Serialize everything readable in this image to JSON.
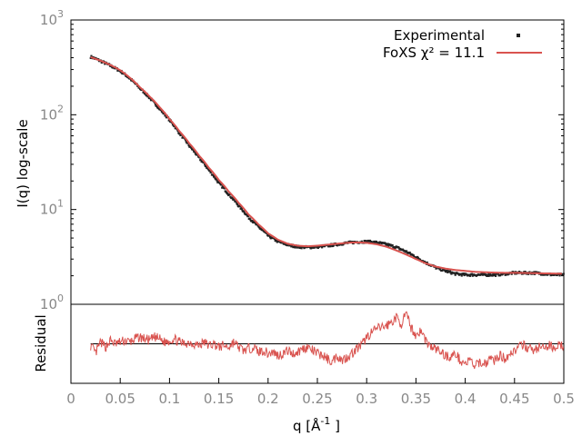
{
  "chart_data": [
    {
      "type": "scatter",
      "panel": "top",
      "ylabel": "I(q) log-scale",
      "yscale": "log",
      "ylim": [
        1,
        1000
      ],
      "xlim": [
        0,
        0.5
      ],
      "y_ticks": [
        {
          "base": "10",
          "exp": "0",
          "value": 1
        },
        {
          "base": "10",
          "exp": "1",
          "value": 10
        },
        {
          "base": "10",
          "exp": "2",
          "value": 100
        },
        {
          "base": "10",
          "exp": "3",
          "value": 1000
        }
      ],
      "series": [
        {
          "name": "Experimental",
          "color": "#222222",
          "style": "points",
          "x": [
            0.02,
            0.03,
            0.04,
            0.05,
            0.06,
            0.07,
            0.08,
            0.09,
            0.1,
            0.11,
            0.12,
            0.13,
            0.14,
            0.15,
            0.16,
            0.17,
            0.18,
            0.19,
            0.2,
            0.21,
            0.22,
            0.23,
            0.24,
            0.25,
            0.26,
            0.27,
            0.28,
            0.29,
            0.3,
            0.31,
            0.32,
            0.33,
            0.34,
            0.35,
            0.36,
            0.37,
            0.38,
            0.39,
            0.4,
            0.41,
            0.42,
            0.43,
            0.44,
            0.45,
            0.46,
            0.47,
            0.48,
            0.49,
            0.5
          ],
          "y": [
            410,
            370,
            330,
            290,
            240,
            190,
            150,
            115,
            88,
            64,
            47,
            35,
            26,
            19,
            14.5,
            11,
            8.3,
            6.6,
            5.3,
            4.6,
            4.25,
            4.05,
            4.0,
            4.05,
            4.15,
            4.3,
            4.45,
            4.55,
            4.6,
            4.5,
            4.3,
            4.0,
            3.6,
            3.15,
            2.75,
            2.45,
            2.25,
            2.1,
            2.05,
            2.05,
            2.05,
            2.05,
            2.1,
            2.15,
            2.15,
            2.15,
            2.1,
            2.05,
            2.05
          ]
        },
        {
          "name": "FoXS χ² = 11.1",
          "color": "#d9534f",
          "style": "line",
          "x": [
            0.02,
            0.03,
            0.04,
            0.05,
            0.06,
            0.07,
            0.08,
            0.09,
            0.1,
            0.11,
            0.12,
            0.13,
            0.14,
            0.15,
            0.16,
            0.17,
            0.18,
            0.19,
            0.2,
            0.21,
            0.22,
            0.23,
            0.24,
            0.25,
            0.26,
            0.27,
            0.28,
            0.29,
            0.3,
            0.31,
            0.32,
            0.33,
            0.34,
            0.35,
            0.36,
            0.37,
            0.38,
            0.39,
            0.4,
            0.41,
            0.42,
            0.43,
            0.44,
            0.45,
            0.46,
            0.47,
            0.48,
            0.49,
            0.5
          ],
          "y": [
            405,
            372,
            335,
            295,
            245,
            195,
            155,
            120,
            90,
            67,
            50,
            37,
            27.5,
            20.5,
            15.5,
            11.8,
            8.9,
            7.0,
            5.6,
            4.8,
            4.35,
            4.15,
            4.1,
            4.15,
            4.25,
            4.35,
            4.45,
            4.5,
            4.45,
            4.3,
            4.05,
            3.7,
            3.35,
            3.0,
            2.7,
            2.5,
            2.38,
            2.3,
            2.25,
            2.2,
            2.18,
            2.16,
            2.15,
            2.15,
            2.14,
            2.13,
            2.12,
            2.11,
            2.1
          ]
        }
      ],
      "legend": {
        "placement": "top-right"
      }
    },
    {
      "type": "line",
      "panel": "bottom",
      "ylabel": "Residual",
      "xlabel_parts": {
        "pre": "q [Å",
        "sup": "-1",
        "post": " ]"
      },
      "xlim": [
        0,
        0.5
      ],
      "ylim": [
        -1.2,
        1.2
      ],
      "x_ticks": [
        "0",
        "0.05",
        "0.1",
        "0.15",
        "0.2",
        "0.25",
        "0.3",
        "0.35",
        "0.4",
        "0.45",
        "0.5"
      ],
      "baseline": 0,
      "series": [
        {
          "name": "",
          "color": "#d9534f",
          "x": [
            0.02,
            0.025,
            0.03,
            0.035,
            0.04,
            0.045,
            0.05,
            0.055,
            0.06,
            0.065,
            0.07,
            0.075,
            0.08,
            0.085,
            0.09,
            0.095,
            0.1,
            0.105,
            0.11,
            0.115,
            0.12,
            0.125,
            0.13,
            0.135,
            0.14,
            0.145,
            0.15,
            0.155,
            0.16,
            0.165,
            0.17,
            0.175,
            0.18,
            0.185,
            0.19,
            0.195,
            0.2,
            0.205,
            0.21,
            0.215,
            0.22,
            0.225,
            0.23,
            0.235,
            0.24,
            0.245,
            0.25,
            0.255,
            0.26,
            0.265,
            0.27,
            0.275,
            0.28,
            0.285,
            0.29,
            0.295,
            0.3,
            0.305,
            0.31,
            0.315,
            0.32,
            0.325,
            0.33,
            0.335,
            0.34,
            0.345,
            0.35,
            0.355,
            0.36,
            0.365,
            0.37,
            0.375,
            0.38,
            0.385,
            0.39,
            0.395,
            0.4,
            0.405,
            0.41,
            0.415,
            0.42,
            0.425,
            0.43,
            0.435,
            0.44,
            0.445,
            0.45,
            0.455,
            0.46,
            0.465,
            0.47,
            0.475,
            0.48,
            0.485,
            0.49,
            0.495,
            0.5
          ],
          "y": [
            -0.05,
            -0.3,
            0.05,
            -0.1,
            0.1,
            0.0,
            0.05,
            0.1,
            0.05,
            0.15,
            0.2,
            0.15,
            0.1,
            0.2,
            0.15,
            0.05,
            0.1,
            0.15,
            0.05,
            0.0,
            0.05,
            0.0,
            -0.05,
            0.05,
            -0.05,
            0.0,
            -0.1,
            -0.05,
            -0.1,
            0.05,
            -0.1,
            -0.2,
            -0.15,
            -0.1,
            -0.25,
            -0.2,
            -0.3,
            -0.25,
            -0.35,
            -0.3,
            -0.2,
            -0.3,
            -0.25,
            -0.15,
            -0.1,
            -0.2,
            -0.3,
            -0.35,
            -0.45,
            -0.55,
            -0.35,
            -0.5,
            -0.4,
            -0.3,
            -0.15,
            -0.05,
            0.2,
            0.35,
            0.45,
            0.5,
            0.55,
            0.65,
            0.8,
            0.6,
            0.9,
            0.5,
            0.25,
            0.4,
            0.1,
            -0.1,
            -0.15,
            -0.25,
            -0.35,
            -0.4,
            -0.3,
            -0.5,
            -0.6,
            -0.5,
            -0.7,
            -0.55,
            -0.6,
            -0.45,
            -0.5,
            -0.35,
            -0.45,
            -0.3,
            -0.2,
            -0.1,
            -0.05,
            -0.15,
            -0.2,
            -0.1,
            -0.15,
            -0.05,
            -0.1,
            -0.05,
            -0.05
          ]
        }
      ]
    }
  ]
}
